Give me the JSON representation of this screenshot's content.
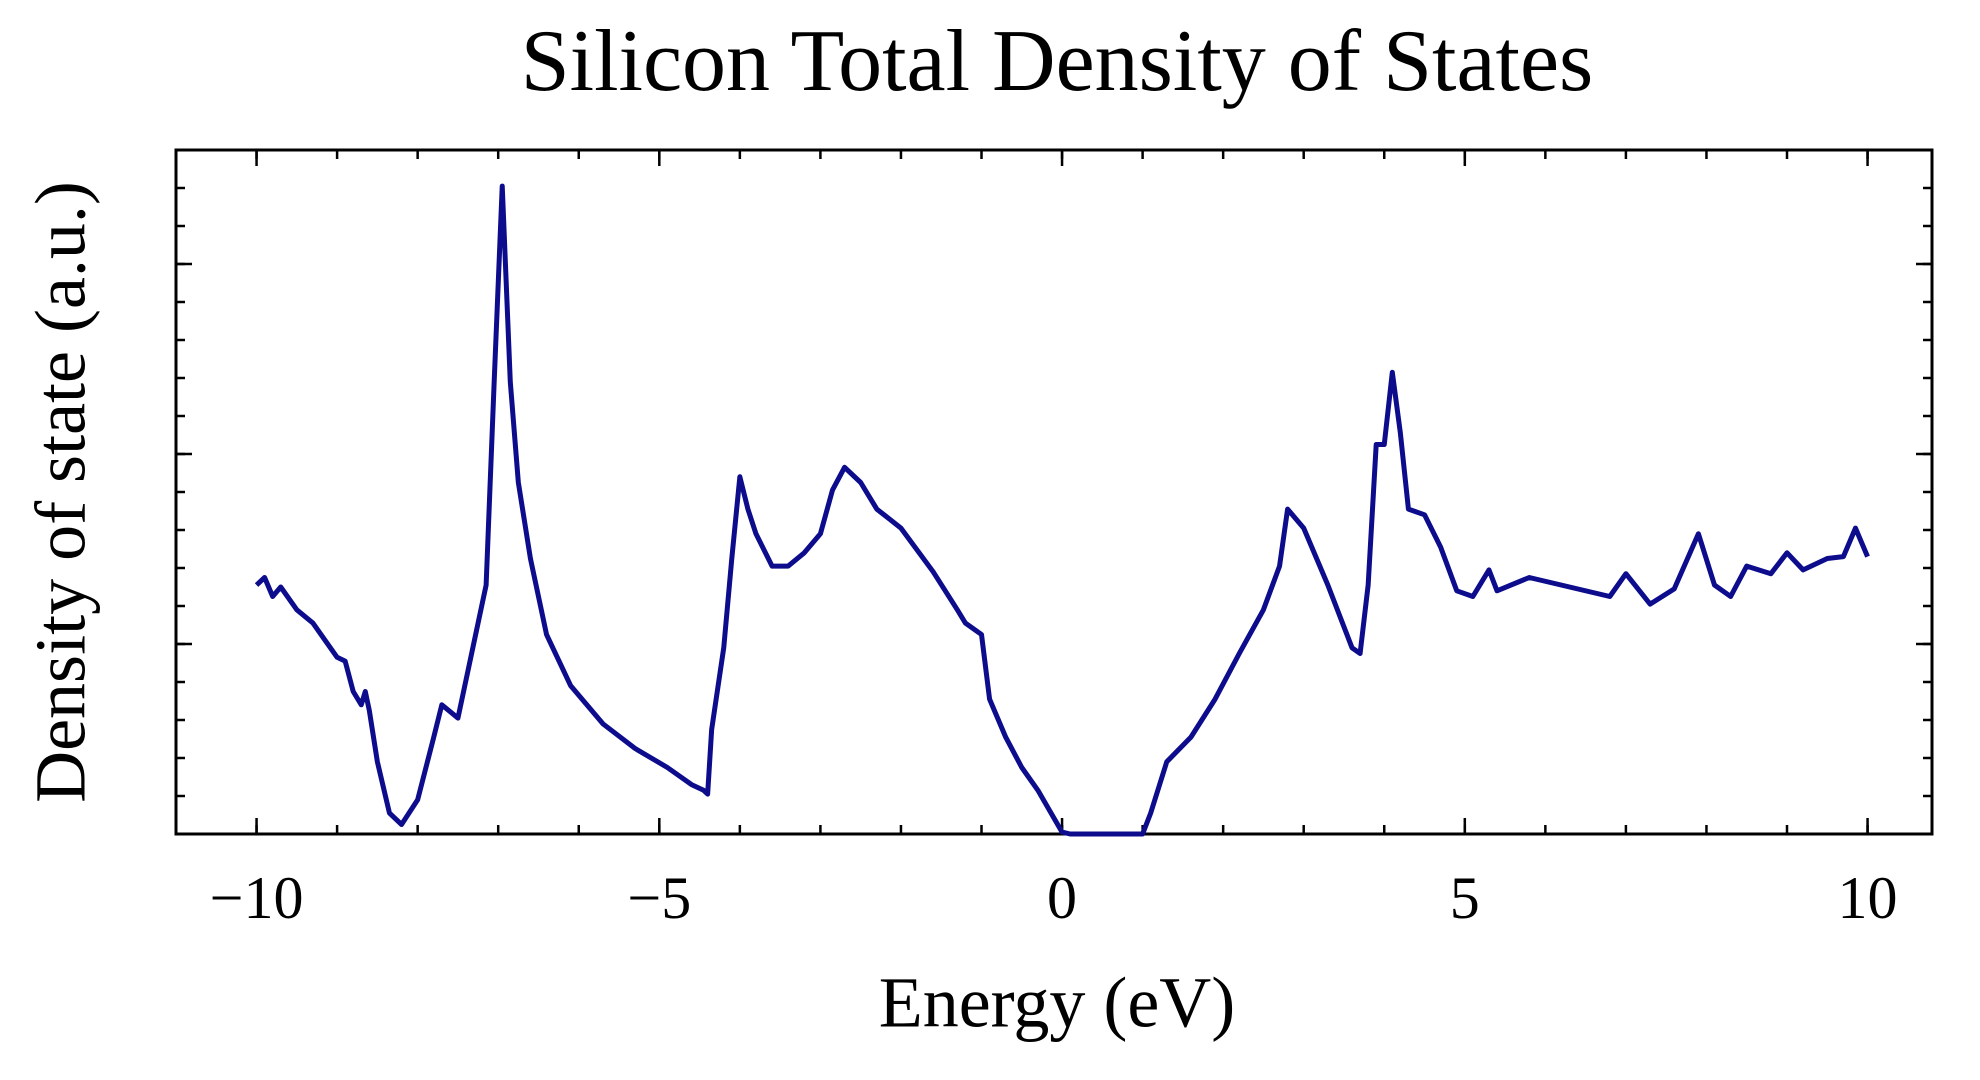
{
  "chart_data": {
    "type": "line",
    "title": "Silicon Total Density of States",
    "x_label": "Energy (eV)",
    "y_label": "Density of state (a.u.)",
    "x": [
      -10,
      -9.9,
      -9.8,
      -9.7,
      -9.5,
      -9.3,
      -9.0,
      -8.9,
      -8.8,
      -8.7,
      -8.65,
      -8.6,
      -8.5,
      -8.35,
      -8.2,
      -8.0,
      -7.8,
      -7.7,
      -7.5,
      -7.3,
      -7.15,
      -7.05,
      -6.95,
      -6.85,
      -6.75,
      -6.6,
      -6.4,
      -6.1,
      -5.7,
      -5.3,
      -4.9,
      -4.6,
      -4.45,
      -4.4,
      -4.35,
      -4.2,
      -4.1,
      -4.0,
      -3.9,
      -3.8,
      -3.6,
      -3.4,
      -3.2,
      -3.0,
      -2.85,
      -2.7,
      -2.5,
      -2.3,
      -2.0,
      -1.6,
      -1.3,
      -1.2,
      -1.0,
      -0.9,
      -0.7,
      -0.5,
      -0.3,
      0,
      0.1,
      0.5,
      1.0,
      1.1,
      1.3,
      1.6,
      1.9,
      2.2,
      2.5,
      2.7,
      2.8,
      3.0,
      3.3,
      3.6,
      3.7,
      3.8,
      3.9,
      4.0,
      4.1,
      4.2,
      4.3,
      4.5,
      4.7,
      4.9,
      5.1,
      5.3,
      5.4,
      5.8,
      6.3,
      6.8,
      7.0,
      7.3,
      7.6,
      7.9,
      8.1,
      8.3,
      8.5,
      8.8,
      9.0,
      9.2,
      9.5,
      9.7,
      9.85,
      10.0
    ],
    "series": [
      {
        "color": "#0c0c8c",
        "values": [
          1.31,
          1.35,
          1.25,
          1.3,
          1.18,
          1.11,
          0.93,
          0.91,
          0.75,
          0.68,
          0.75,
          0.65,
          0.38,
          0.11,
          0.05,
          0.18,
          0.51,
          0.68,
          0.61,
          1.01,
          1.31,
          2.38,
          3.41,
          2.38,
          1.85,
          1.45,
          1.05,
          0.78,
          0.58,
          0.45,
          0.35,
          0.26,
          0.23,
          0.21,
          0.55,
          0.98,
          1.45,
          1.88,
          1.71,
          1.58,
          1.41,
          1.41,
          1.48,
          1.58,
          1.81,
          1.93,
          1.85,
          1.71,
          1.61,
          1.38,
          1.18,
          1.11,
          1.05,
          0.71,
          0.51,
          0.35,
          0.23,
          0.01,
          0,
          0,
          0,
          0.11,
          0.38,
          0.51,
          0.71,
          0.95,
          1.18,
          1.41,
          1.71,
          1.61,
          1.31,
          0.98,
          0.95,
          1.31,
          2.05,
          2.05,
          2.43,
          2.11,
          1.71,
          1.68,
          1.51,
          1.28,
          1.25,
          1.39,
          1.28,
          1.35,
          1.3,
          1.25,
          1.37,
          1.21,
          1.29,
          1.58,
          1.31,
          1.25,
          1.41,
          1.37,
          1.48,
          1.39,
          1.45,
          1.46,
          1.61,
          1.46
        ]
      }
    ],
    "xlim": [
      -11,
      10.8
    ],
    "ylim": [
      0,
      3.6
    ],
    "xticks": [
      {
        "value": -10,
        "label": "−10"
      },
      {
        "value": -5,
        "label": "−5"
      },
      0,
      5,
      10
    ],
    "yticks": [
      0,
      1,
      2,
      3
    ]
  }
}
